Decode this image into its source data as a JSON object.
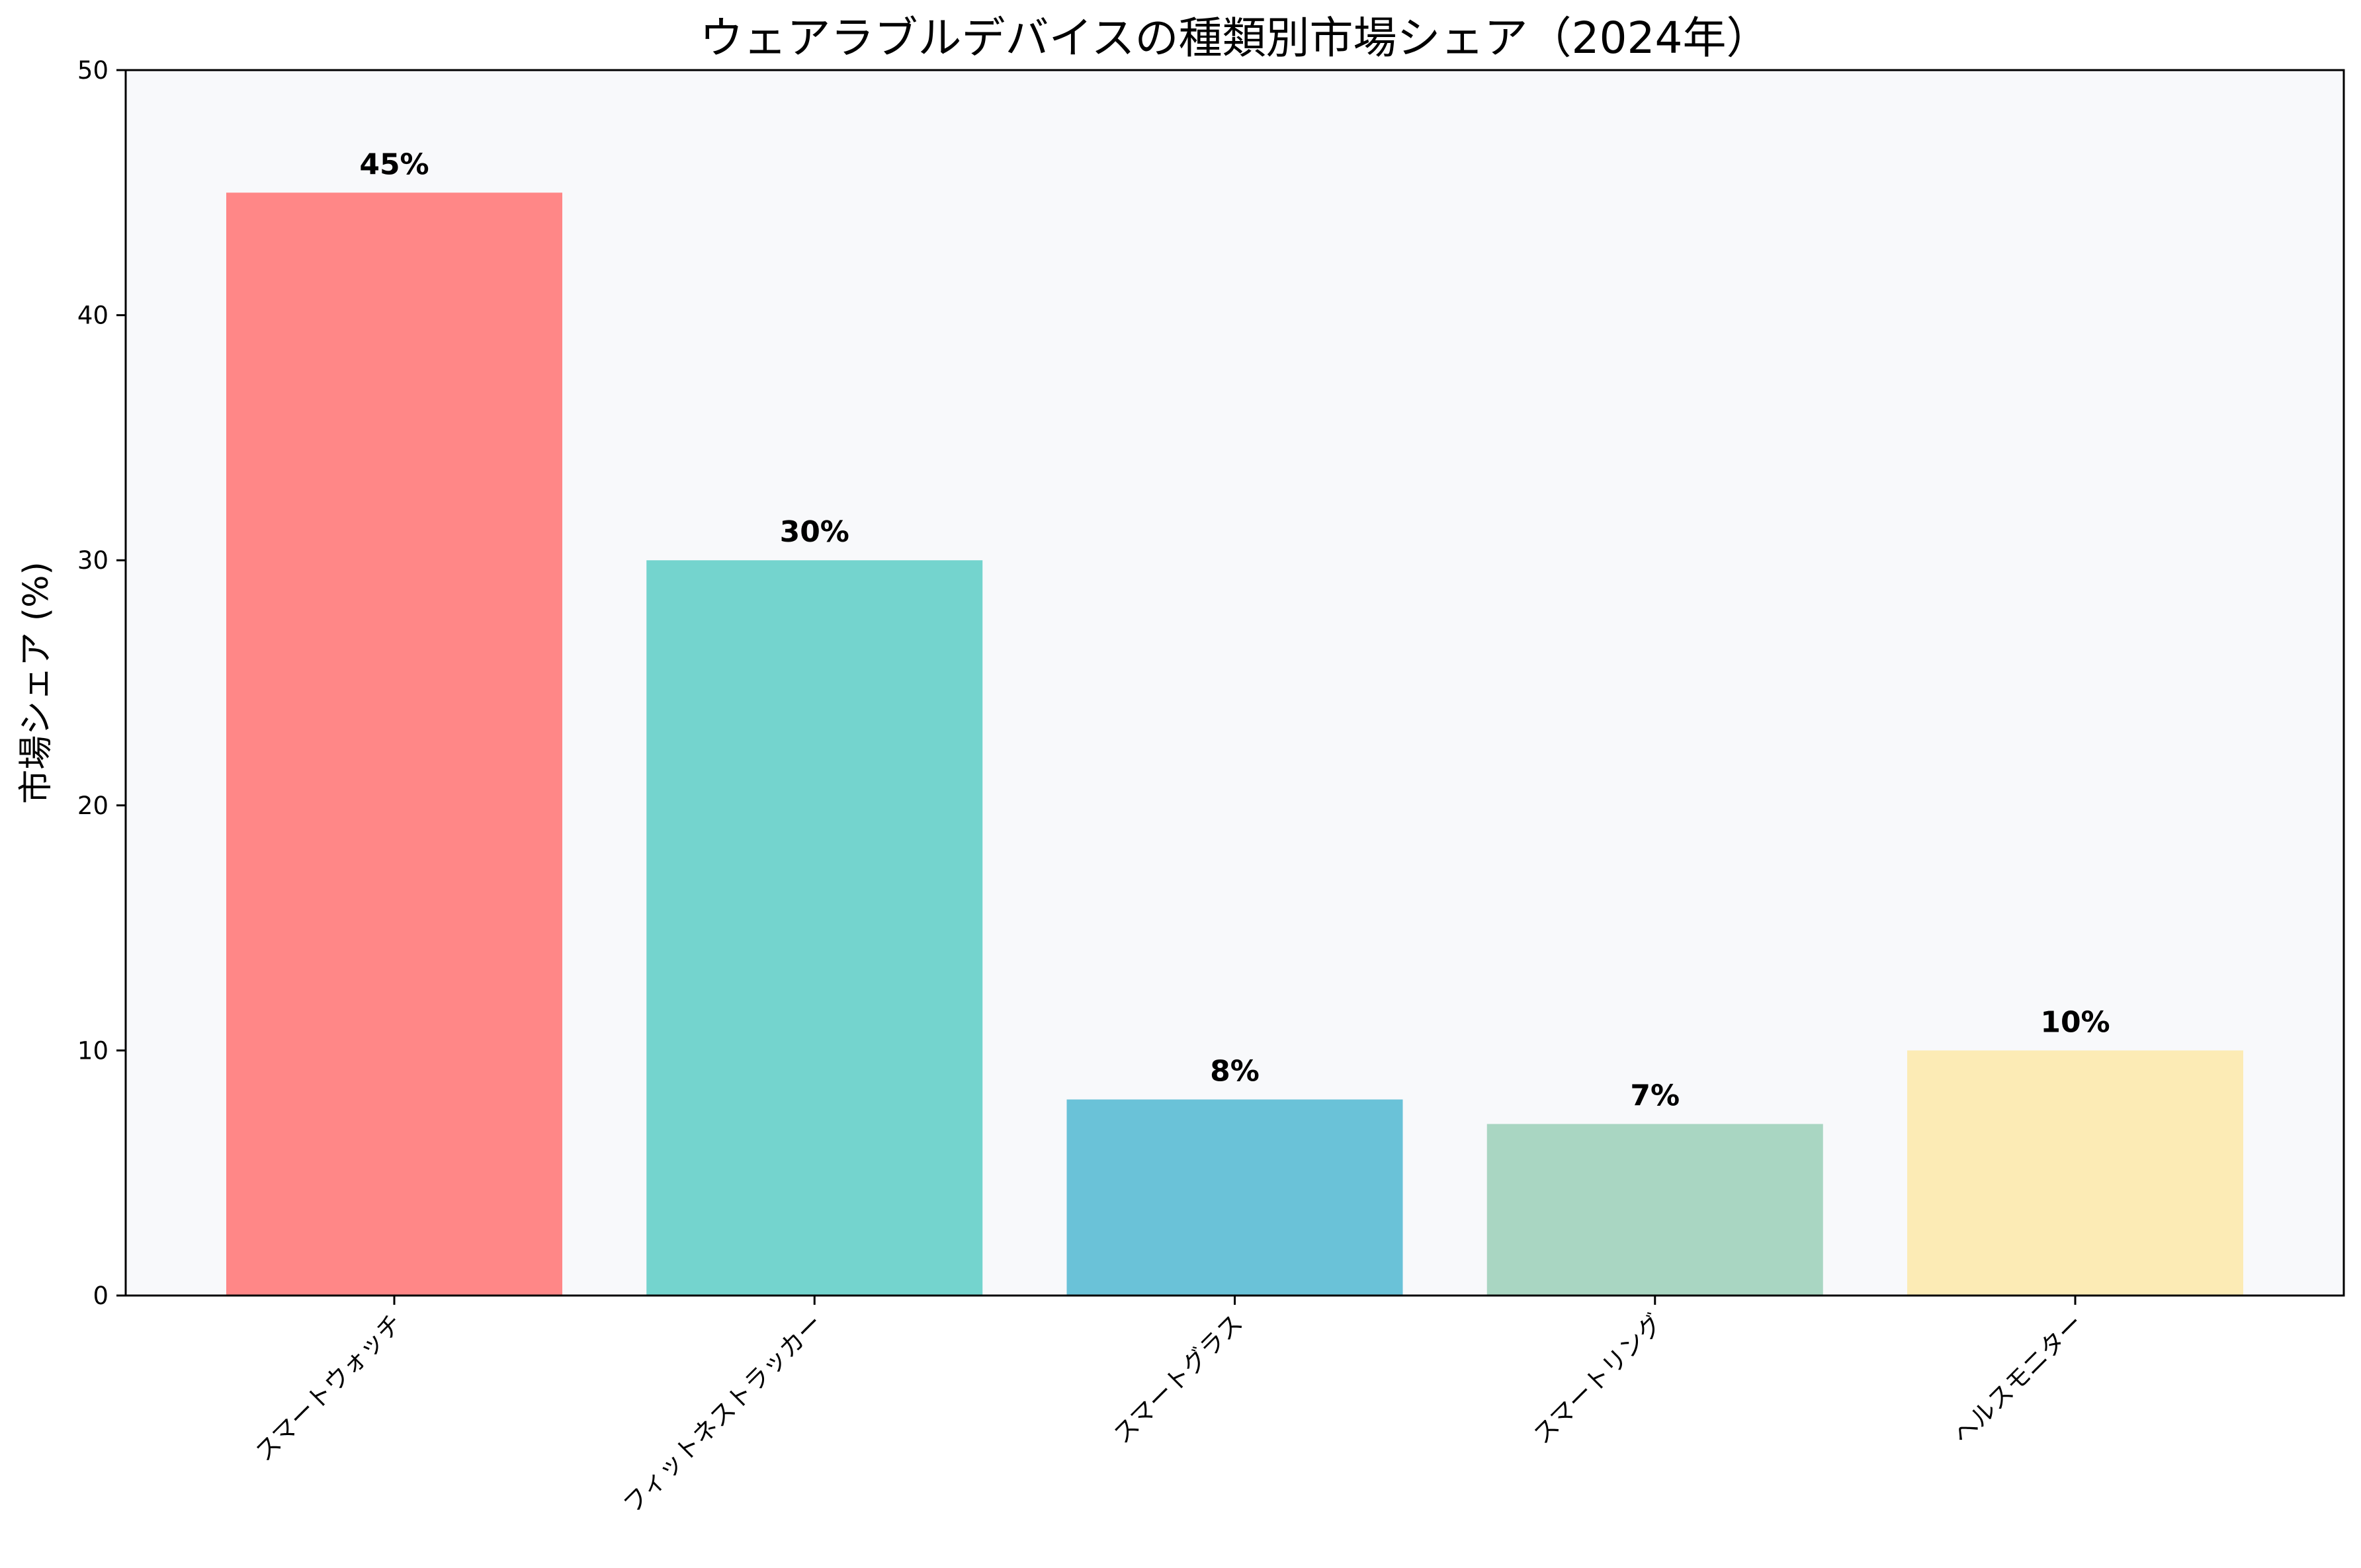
{
  "chart_data": {
    "type": "bar",
    "title": "ウェアラブルデバイスの種類別市場シェア（2024年）",
    "xlabel": "",
    "ylabel": "市場シェア (%)",
    "categories": [
      "スマートウォッチ",
      "フィットネストラッカー",
      "スマートグラス",
      "スマートリング",
      "ヘルスモニター"
    ],
    "values": [
      45,
      30,
      8,
      7,
      10
    ],
    "data_labels": [
      "45%",
      "30%",
      "8%",
      "7%",
      "10%"
    ],
    "colors": [
      "#ff8787",
      "#74d4ce",
      "#6ac2d8",
      "#a9d6c2",
      "#fcebb5"
    ],
    "ylim": [
      0,
      50
    ],
    "yticks": [
      0,
      10,
      20,
      30,
      40,
      50
    ],
    "ytick_labels": [
      "0",
      "10",
      "20",
      "30",
      "40",
      "50"
    ],
    "grid": false,
    "plot_background": "#f8f9fb"
  }
}
